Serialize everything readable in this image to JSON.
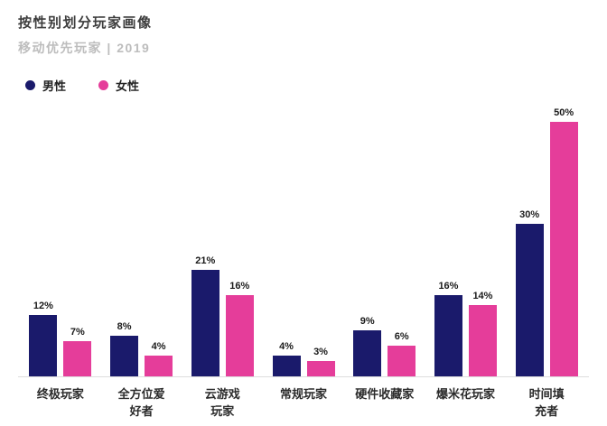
{
  "header": {
    "title": "按性别划分玩家画像",
    "subtitle": "移动优先玩家 | 2019"
  },
  "legend": [
    {
      "label": "男性",
      "color": "#1a1a6b"
    },
    {
      "label": "女性",
      "color": "#e53d9a"
    }
  ],
  "chart_data": {
    "type": "bar",
    "title": "按性别划分玩家画像",
    "subtitle": "移动优先玩家 | 2019",
    "categories": [
      "终极玩家",
      "全方位爱\n好者",
      "云游戏\n玩家",
      "常规玩家",
      "硬件收藏家",
      "爆米花玩家",
      "时间填\n充者"
    ],
    "series": [
      {
        "name": "男性",
        "color": "#1a1a6b",
        "values": [
          12,
          8,
          21,
          4,
          9,
          16,
          30
        ]
      },
      {
        "name": "女性",
        "color": "#e53d9a",
        "values": [
          7,
          4,
          16,
          3,
          6,
          14,
          50
        ]
      }
    ],
    "value_suffix": "%",
    "xlabel": "",
    "ylabel": "",
    "ylim": [
      0,
      50
    ],
    "grid": false,
    "legend_position": "top-left"
  }
}
